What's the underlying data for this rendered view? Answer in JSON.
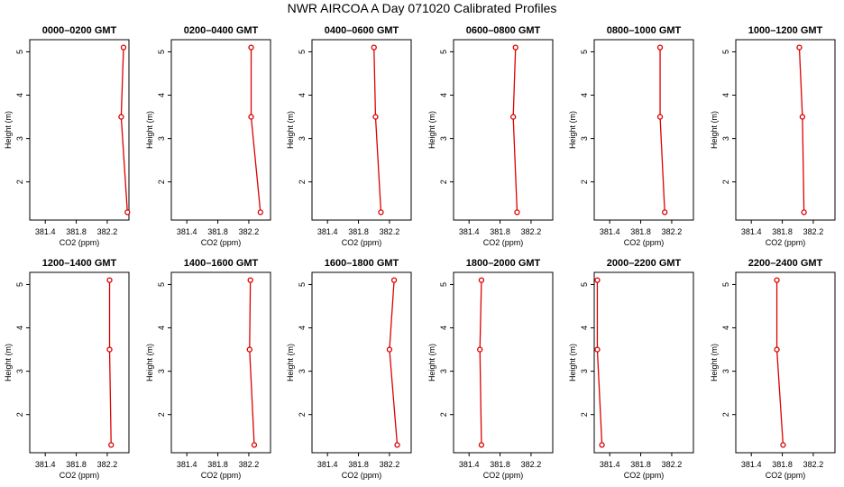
{
  "title": "NWR AIRCOA A  Day 071020  Calibrated Profiles",
  "colors": {
    "series": "#dd0000",
    "axis": "#000000",
    "background": "#ffffff"
  },
  "chart_data": [
    {
      "type": "line",
      "title": "0000–0200 GMT",
      "xlabel": "CO2 (ppm)",
      "ylabel": "Height (m)",
      "xlim": [
        381.2,
        382.48
      ],
      "ylim": [
        1.12,
        5.28
      ],
      "xticks": [
        381.4,
        381.8,
        382.2
      ],
      "xtick_labels": [
        "381.4",
        "381.8",
        "382.2"
      ],
      "yticks": [
        2,
        3,
        4,
        5
      ],
      "ytick_labels": [
        "2",
        "3",
        "4",
        "5"
      ],
      "points": [
        {
          "x": 382.41,
          "y": 5.1
        },
        {
          "x": 382.38,
          "y": 3.5
        },
        {
          "x": 382.46,
          "y": 1.3
        }
      ]
    },
    {
      "type": "line",
      "title": "0200–0400 GMT",
      "xlabel": "CO2 (ppm)",
      "ylabel": "Height (m)",
      "xlim": [
        381.2,
        382.48
      ],
      "ylim": [
        1.12,
        5.28
      ],
      "xticks": [
        381.4,
        381.8,
        382.2
      ],
      "xtick_labels": [
        "381.4",
        "381.8",
        "382.2"
      ],
      "yticks": [
        2,
        3,
        4,
        5
      ],
      "ytick_labels": [
        "2",
        "3",
        "4",
        "5"
      ],
      "points": [
        {
          "x": 382.23,
          "y": 5.1
        },
        {
          "x": 382.23,
          "y": 3.5
        },
        {
          "x": 382.35,
          "y": 1.3
        }
      ]
    },
    {
      "type": "line",
      "title": "0400–0600 GMT",
      "xlabel": "CO2 (ppm)",
      "ylabel": "Height (m)",
      "xlim": [
        381.2,
        382.48
      ],
      "ylim": [
        1.12,
        5.28
      ],
      "xticks": [
        381.4,
        381.8,
        382.2
      ],
      "xtick_labels": [
        "381.4",
        "381.8",
        "382.2"
      ],
      "yticks": [
        2,
        3,
        4,
        5
      ],
      "ytick_labels": [
        "2",
        "3",
        "4",
        "5"
      ],
      "points": [
        {
          "x": 382.0,
          "y": 5.1
        },
        {
          "x": 382.02,
          "y": 3.5
        },
        {
          "x": 382.09,
          "y": 1.3
        }
      ]
    },
    {
      "type": "line",
      "title": "0600–0800 GMT",
      "xlabel": "CO2 (ppm)",
      "ylabel": "Height (m)",
      "xlim": [
        381.2,
        382.48
      ],
      "ylim": [
        1.12,
        5.28
      ],
      "xticks": [
        381.4,
        381.8,
        382.2
      ],
      "xtick_labels": [
        "381.4",
        "381.8",
        "382.2"
      ],
      "yticks": [
        2,
        3,
        4,
        5
      ],
      "ytick_labels": [
        "2",
        "3",
        "4",
        "5"
      ],
      "points": [
        {
          "x": 382.0,
          "y": 5.1
        },
        {
          "x": 381.97,
          "y": 3.5
        },
        {
          "x": 382.02,
          "y": 1.3
        }
      ]
    },
    {
      "type": "line",
      "title": "0800–1000 GMT",
      "xlabel": "CO2 (ppm)",
      "ylabel": "Height (m)",
      "xlim": [
        381.2,
        382.48
      ],
      "ylim": [
        1.12,
        5.28
      ],
      "xticks": [
        381.4,
        381.8,
        382.2
      ],
      "xtick_labels": [
        "381.4",
        "381.8",
        "382.2"
      ],
      "yticks": [
        2,
        3,
        4,
        5
      ],
      "ytick_labels": [
        "2",
        "3",
        "4",
        "5"
      ],
      "points": [
        {
          "x": 382.05,
          "y": 5.1
        },
        {
          "x": 382.05,
          "y": 3.5
        },
        {
          "x": 382.11,
          "y": 1.3
        }
      ]
    },
    {
      "type": "line",
      "title": "1000–1200 GMT",
      "xlabel": "CO2 (ppm)",
      "ylabel": "Height (m)",
      "xlim": [
        381.2,
        382.48
      ],
      "ylim": [
        1.12,
        5.28
      ],
      "xticks": [
        381.4,
        381.8,
        382.2
      ],
      "xtick_labels": [
        "381.4",
        "381.8",
        "382.2"
      ],
      "yticks": [
        2,
        3,
        4,
        5
      ],
      "ytick_labels": [
        "2",
        "3",
        "4",
        "5"
      ],
      "points": [
        {
          "x": 382.02,
          "y": 5.1
        },
        {
          "x": 382.06,
          "y": 3.5
        },
        {
          "x": 382.08,
          "y": 1.3
        }
      ]
    },
    {
      "type": "line",
      "title": "1200–1400 GMT",
      "xlabel": "CO2 (ppm)",
      "ylabel": "Height (m)",
      "xlim": [
        381.2,
        382.48
      ],
      "ylim": [
        1.12,
        5.28
      ],
      "xticks": [
        381.4,
        381.8,
        382.2
      ],
      "xtick_labels": [
        "381.4",
        "381.8",
        "382.2"
      ],
      "yticks": [
        2,
        3,
        4,
        5
      ],
      "ytick_labels": [
        "2",
        "3",
        "4",
        "5"
      ],
      "points": [
        {
          "x": 382.23,
          "y": 5.1
        },
        {
          "x": 382.23,
          "y": 3.5
        },
        {
          "x": 382.25,
          "y": 1.3
        }
      ]
    },
    {
      "type": "line",
      "title": "1400–1600 GMT",
      "xlabel": "CO2 (ppm)",
      "ylabel": "Height (m)",
      "xlim": [
        381.2,
        382.48
      ],
      "ylim": [
        1.12,
        5.28
      ],
      "xticks": [
        381.4,
        381.8,
        382.2
      ],
      "xtick_labels": [
        "381.4",
        "381.8",
        "382.2"
      ],
      "yticks": [
        2,
        3,
        4,
        5
      ],
      "ytick_labels": [
        "2",
        "3",
        "4",
        "5"
      ],
      "points": [
        {
          "x": 382.22,
          "y": 5.1
        },
        {
          "x": 382.21,
          "y": 3.5
        },
        {
          "x": 382.27,
          "y": 1.3
        }
      ]
    },
    {
      "type": "line",
      "title": "1600–1800 GMT",
      "xlabel": "CO2 (ppm)",
      "ylabel": "Height (m)",
      "xlim": [
        381.2,
        382.48
      ],
      "ylim": [
        1.12,
        5.28
      ],
      "xticks": [
        381.4,
        381.8,
        382.2
      ],
      "xtick_labels": [
        "381.4",
        "381.8",
        "382.2"
      ],
      "yticks": [
        2,
        3,
        4,
        5
      ],
      "ytick_labels": [
        "2",
        "3",
        "4",
        "5"
      ],
      "points": [
        {
          "x": 382.26,
          "y": 5.1
        },
        {
          "x": 382.2,
          "y": 3.5
        },
        {
          "x": 382.3,
          "y": 1.3
        }
      ]
    },
    {
      "type": "line",
      "title": "1800–2000 GMT",
      "xlabel": "CO2 (ppm)",
      "ylabel": "Height (m)",
      "xlim": [
        381.2,
        382.48
      ],
      "ylim": [
        1.12,
        5.28
      ],
      "xticks": [
        381.4,
        381.8,
        382.2
      ],
      "xtick_labels": [
        "381.4",
        "381.8",
        "382.2"
      ],
      "yticks": [
        2,
        3,
        4,
        5
      ],
      "ytick_labels": [
        "2",
        "3",
        "4",
        "5"
      ],
      "points": [
        {
          "x": 381.56,
          "y": 5.1
        },
        {
          "x": 381.54,
          "y": 3.5
        },
        {
          "x": 381.56,
          "y": 1.3
        }
      ]
    },
    {
      "type": "line",
      "title": "2000–2200 GMT",
      "xlabel": "CO2 (ppm)",
      "ylabel": "Height (m)",
      "xlim": [
        381.2,
        382.48
      ],
      "ylim": [
        1.12,
        5.28
      ],
      "xticks": [
        381.4,
        381.8,
        382.2
      ],
      "xtick_labels": [
        "381.4",
        "381.8",
        "382.2"
      ],
      "yticks": [
        2,
        3,
        4,
        5
      ],
      "ytick_labels": [
        "2",
        "3",
        "4",
        "5"
      ],
      "points": [
        {
          "x": 381.24,
          "y": 5.1
        },
        {
          "x": 381.24,
          "y": 3.5
        },
        {
          "x": 381.3,
          "y": 1.3
        }
      ]
    },
    {
      "type": "line",
      "title": "2200–2400 GMT",
      "xlabel": "CO2 (ppm)",
      "ylabel": "Height (m)",
      "xlim": [
        381.2,
        382.48
      ],
      "ylim": [
        1.12,
        5.28
      ],
      "xticks": [
        381.4,
        381.8,
        382.2
      ],
      "xtick_labels": [
        "381.4",
        "381.8",
        "382.2"
      ],
      "yticks": [
        2,
        3,
        4,
        5
      ],
      "ytick_labels": [
        "2",
        "3",
        "4",
        "5"
      ],
      "points": [
        {
          "x": 381.73,
          "y": 5.1
        },
        {
          "x": 381.73,
          "y": 3.5
        },
        {
          "x": 381.81,
          "y": 1.3
        }
      ]
    }
  ]
}
